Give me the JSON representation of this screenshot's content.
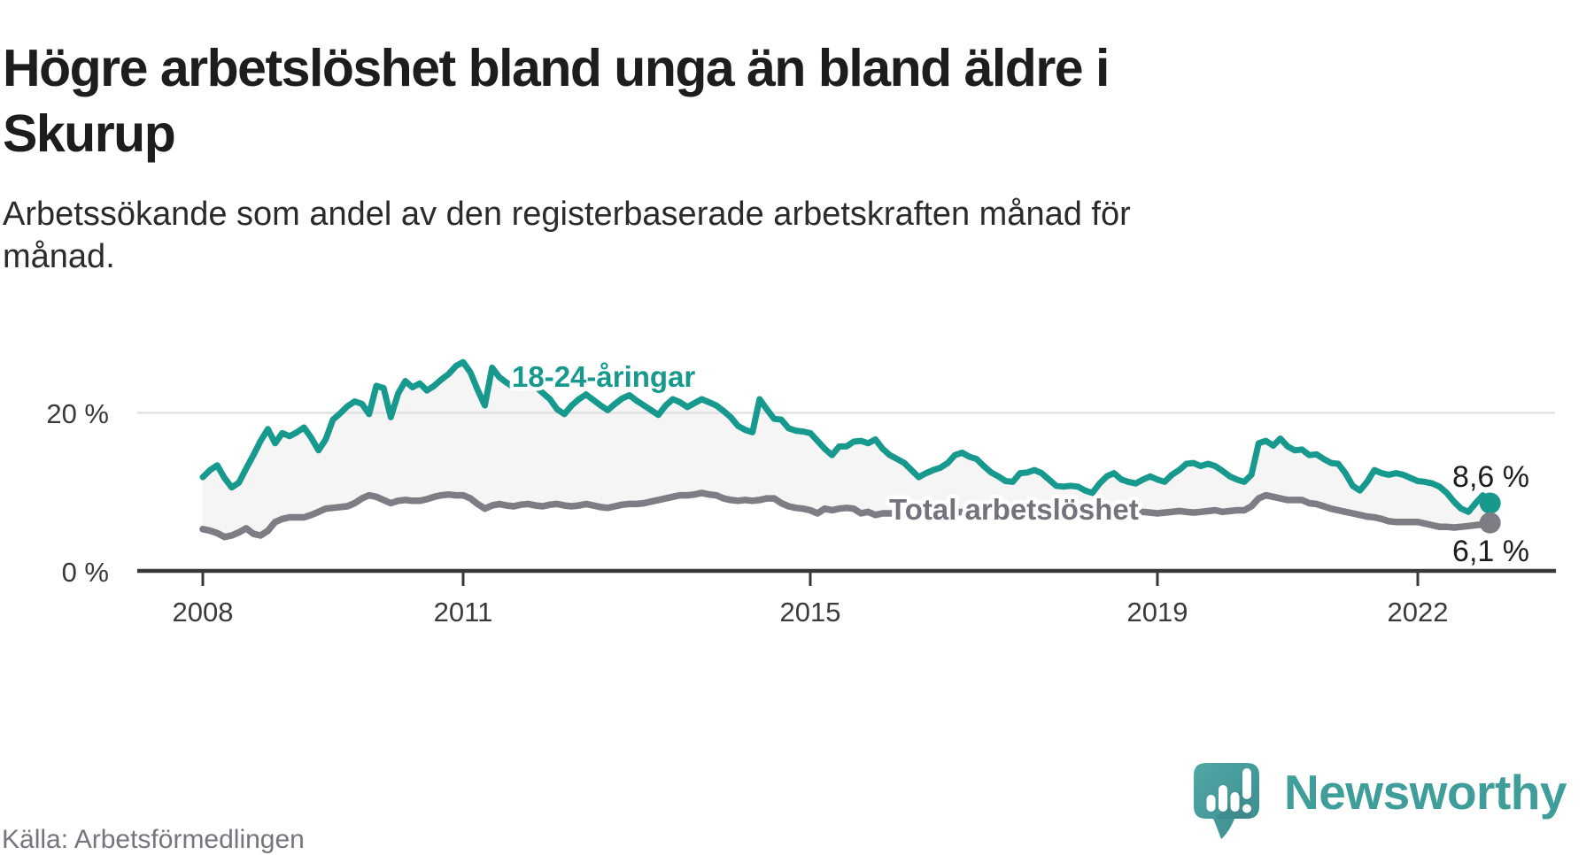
{
  "title": {
    "lines": [
      "Högre arbetslöshet bland unga än bland äldre i",
      "Skurup"
    ]
  },
  "subtitle": {
    "lines": [
      "Arbetssökande som andel av den registerbaserade arbetskraften månad för",
      "månad."
    ]
  },
  "source": "Källa: Arbetsförmedlingen",
  "logo": {
    "text": "Newsworthy"
  },
  "colors": {
    "youth_line": "#18998e",
    "total_line": "#7d7d85",
    "total_label": "#73737b",
    "area_fill": "#f5f5f5",
    "gridline": "#e2e2e2",
    "axis": "#383838",
    "end_label_text": "#1c1c1c",
    "logo_teal": "#3f9e9a"
  },
  "chart_data": {
    "type": "line",
    "title": "Högre arbetslöshet bland unga än bland äldre i Skurup",
    "subtitle": "Arbetssökande som andel av den registerbaserade arbetskraften månad för månad.",
    "unit": "%",
    "frequency": "monthly",
    "x_start": "2008-01",
    "x_end": "2022-11",
    "ylim": [
      0,
      28
    ],
    "grid": "single horizontal gridline at 20 %",
    "legend_position": "inline labels on lines",
    "x_ticks": [
      "2008",
      "2011",
      "2015",
      "2019",
      "2022"
    ],
    "x_tick_years": [
      2008,
      2011,
      2015,
      2019,
      2022
    ],
    "y_tick_labels": [
      "20 %",
      "0 %"
    ],
    "y_tick_values": [
      20,
      0
    ],
    "series": [
      {
        "name": "18-24-åringar",
        "color": "#18998e",
        "end_label": "8,6 %",
        "end_value": 8.6,
        "values": [
          11.9,
          12.8,
          13.4,
          11.8,
          10.6,
          11.2,
          13.0,
          14.7,
          16.5,
          18.0,
          16.2,
          17.5,
          17.1,
          17.6,
          18.2,
          16.9,
          15.3,
          16.7,
          19.2,
          20.0,
          20.9,
          21.5,
          21.2,
          19.9,
          23.5,
          23.2,
          19.5,
          22.5,
          24.1,
          23.3,
          23.8,
          22.9,
          23.5,
          24.3,
          25.0,
          26.0,
          26.5,
          25.2,
          23.0,
          21.0,
          25.8,
          24.6,
          23.9,
          23.3,
          23.6,
          24.0,
          23.4,
          22.6,
          21.8,
          20.5,
          19.9,
          21.0,
          21.8,
          22.4,
          21.7,
          21.0,
          20.4,
          21.2,
          21.9,
          22.3,
          21.6,
          21.0,
          20.4,
          19.8,
          21.0,
          21.8,
          21.4,
          20.8,
          21.3,
          21.8,
          21.4,
          21.0,
          20.3,
          19.5,
          18.4,
          17.9,
          17.6,
          21.8,
          20.5,
          19.3,
          19.2,
          18.1,
          17.8,
          17.7,
          17.5,
          16.5,
          15.5,
          14.7,
          15.8,
          15.8,
          16.4,
          16.5,
          16.2,
          16.7,
          15.5,
          14.7,
          14.2,
          13.7,
          12.8,
          11.9,
          12.4,
          12.8,
          13.1,
          13.7,
          14.7,
          15.0,
          14.5,
          14.2,
          13.3,
          12.5,
          12.0,
          11.4,
          11.3,
          12.4,
          12.5,
          12.8,
          12.4,
          11.6,
          10.8,
          10.7,
          10.8,
          10.7,
          10.2,
          9.9,
          11.1,
          12.0,
          12.4,
          11.6,
          11.3,
          11.1,
          11.6,
          12.0,
          11.6,
          11.3,
          12.2,
          12.8,
          13.6,
          13.7,
          13.3,
          13.6,
          13.3,
          12.7,
          12.0,
          11.6,
          11.3,
          12.2,
          16.2,
          16.5,
          15.9,
          16.8,
          15.8,
          15.3,
          15.4,
          14.7,
          14.8,
          14.2,
          13.7,
          13.6,
          12.4,
          10.8,
          10.2,
          11.3,
          12.8,
          12.4,
          12.2,
          12.4,
          12.2,
          11.8,
          11.4,
          11.3,
          11.1,
          10.7,
          9.9,
          8.8,
          7.9,
          7.5,
          8.6,
          9.6,
          8.6
        ]
      },
      {
        "name": "Total arbetslöshet",
        "color": "#7d7d85",
        "end_label": "6,1 %",
        "end_value": 6.1,
        "values": [
          5.3,
          5.1,
          4.8,
          4.3,
          4.5,
          4.9,
          5.4,
          4.7,
          4.5,
          5.1,
          6.2,
          6.6,
          6.8,
          6.8,
          6.8,
          7.1,
          7.5,
          7.9,
          8.0,
          8.1,
          8.2,
          8.6,
          9.2,
          9.6,
          9.4,
          9.0,
          8.6,
          8.9,
          9.0,
          8.9,
          8.9,
          9.1,
          9.4,
          9.6,
          9.7,
          9.6,
          9.6,
          9.2,
          8.5,
          7.9,
          8.3,
          8.5,
          8.3,
          8.2,
          8.4,
          8.5,
          8.3,
          8.2,
          8.4,
          8.5,
          8.3,
          8.2,
          8.3,
          8.5,
          8.3,
          8.1,
          8.0,
          8.2,
          8.4,
          8.5,
          8.5,
          8.6,
          8.8,
          9.0,
          9.2,
          9.4,
          9.6,
          9.6,
          9.7,
          9.9,
          9.7,
          9.6,
          9.2,
          9.0,
          8.9,
          9.0,
          8.9,
          9.0,
          9.2,
          9.2,
          8.6,
          8.2,
          8.0,
          7.9,
          7.7,
          7.3,
          7.9,
          7.7,
          7.9,
          8.0,
          7.9,
          7.3,
          7.5,
          7.1,
          7.3,
          7.3,
          7.3,
          7.4,
          7.5,
          7.3,
          7.4,
          7.5,
          7.3,
          7.2,
          7.4,
          7.5,
          7.4,
          7.3,
          7.4,
          7.5,
          7.6,
          7.4,
          7.3,
          7.5,
          7.6,
          7.7,
          7.6,
          7.4,
          7.3,
          7.4,
          7.5,
          7.4,
          7.3,
          7.2,
          7.3,
          7.4,
          7.3,
          7.2,
          7.3,
          7.4,
          7.5,
          7.4,
          7.3,
          7.4,
          7.5,
          7.6,
          7.5,
          7.4,
          7.5,
          7.6,
          7.7,
          7.5,
          7.6,
          7.7,
          7.7,
          8.2,
          9.2,
          9.6,
          9.4,
          9.2,
          9.0,
          9.0,
          9.0,
          8.6,
          8.5,
          8.2,
          7.9,
          7.7,
          7.5,
          7.3,
          7.1,
          6.9,
          6.8,
          6.6,
          6.3,
          6.2,
          6.2,
          6.2,
          6.2,
          6.0,
          5.8,
          5.6,
          5.6,
          5.5,
          5.6,
          5.7,
          5.8,
          5.9,
          6.1
        ]
      }
    ]
  }
}
